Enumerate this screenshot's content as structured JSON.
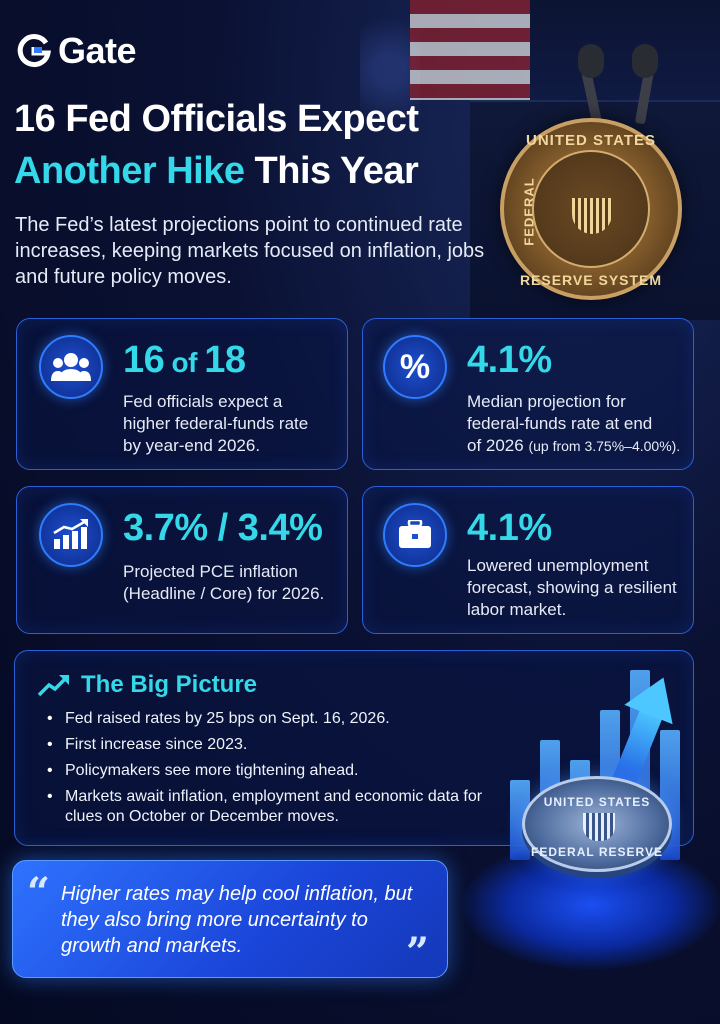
{
  "brand": {
    "name": "Gate",
    "accent": "#34d8e8",
    "primary": "#2f7cff"
  },
  "header": {
    "title_line1": "16 Fed Officials Expect",
    "title_line2_accent": "Another Hike",
    "title_line2_rest": " This Year",
    "subtitle": "The Fed’s latest projections point to continued rate increases, keeping markets focused on inflation, jobs and future policy moves."
  },
  "seal": {
    "top_text": "UNITED STATES",
    "left_text": "FEDERAL",
    "bottom_text": "RESERVE SYSTEM"
  },
  "stats": [
    {
      "icon": "people-icon",
      "value_main": "16",
      "value_small": " of ",
      "value_end": "18",
      "desc_lines": [
        "Fed officials expect a",
        "higher federal-funds rate",
        "by year-end 2026."
      ]
    },
    {
      "icon": "percent-icon",
      "value_main": "4.1%",
      "desc_lines": [
        "Median projection for",
        "federal-funds rate at end"
      ],
      "desc_tail_big": "of 2026 ",
      "desc_tail_small": "(up from 3.75%–4.00%)."
    },
    {
      "icon": "chart-up-icon",
      "value_main": "3.7% / 3.4%",
      "desc_lines": [
        "Projected PCE inflation",
        "(Headline / Core) for 2026."
      ]
    },
    {
      "icon": "briefcase-icon",
      "value_main": "4.1%",
      "desc_lines": [
        "Lowered unemployment",
        "forecast, showing a resilient",
        "labor market."
      ]
    }
  ],
  "big_picture": {
    "title": "The Big Picture",
    "items": [
      "Fed raised rates by 25 bps on Sept. 16, 2026.",
      "First increase since 2023.",
      "Policymakers see more tightening ahead.",
      "Markets await inflation, employment and economic data for clues on October or December moves."
    ]
  },
  "coin": {
    "top_text": "UNITED STATES",
    "bottom_text": "FEDERAL RESERVE"
  },
  "quote": {
    "open": "“",
    "close": "”",
    "text": "Higher rates may help cool inflation, but they also bring more uncertainty to growth and markets."
  }
}
